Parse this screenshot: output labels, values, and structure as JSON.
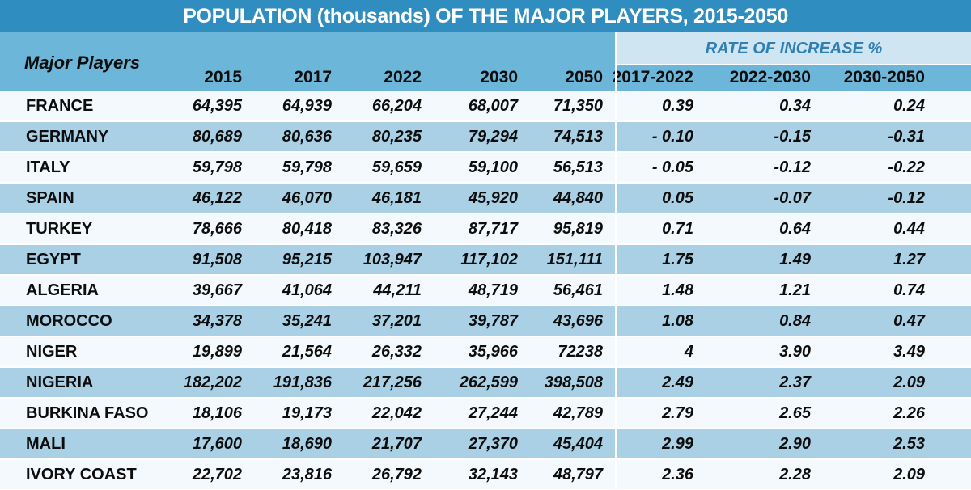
{
  "title": "POPULATION (thousands) OF THE MAJOR PLAYERS, 2015-2050",
  "rate_header": "RATE OF INCREASE %",
  "row_header": "Major Players",
  "colors": {
    "title_bg": "#2f8dbf",
    "header_bg": "#6bb6d9",
    "rate_header_bg": "#cfe5f1",
    "rate_header_text": "#2f7fb3",
    "row_light": "#f3f9fc",
    "row_dark": "#a9d0e5"
  },
  "chart_data": {
    "type": "table",
    "title": "POPULATION (thousands) OF THE MAJOR PLAYERS, 2015-2050",
    "columns": [
      "2015",
      "2017",
      "2022",
      "2030",
      "2050",
      "2017-2022",
      "2022-2030",
      "2030-2050"
    ],
    "rows": [
      {
        "name": "FRANCE",
        "values": [
          "64,395",
          "64,939",
          "66,204",
          "68,007",
          "71,350",
          "0.39",
          "0.34",
          "0.24"
        ]
      },
      {
        "name": "GERMANY",
        "values": [
          "80,689",
          "80,636",
          "80,235",
          "79,294",
          "74,513",
          "- 0.10",
          "-0.15",
          "-0.31"
        ]
      },
      {
        "name": "ITALY",
        "values": [
          "59,798",
          "59,798",
          "59,659",
          "59,100",
          "56,513",
          "- 0.05",
          "-0.12",
          "-0.22"
        ]
      },
      {
        "name": "SPAIN",
        "values": [
          "46,122",
          "46,070",
          "46,181",
          "45,920",
          "44,840",
          "0.05",
          "-0.07",
          "-0.12"
        ]
      },
      {
        "name": "TURKEY",
        "values": [
          "78,666",
          "80,418",
          "83,326",
          "87,717",
          "95,819",
          "0.71",
          "0.64",
          "0.44"
        ]
      },
      {
        "name": "EGYPT",
        "values": [
          "91,508",
          "95,215",
          "103,947",
          "117,102",
          "151,111",
          "1.75",
          "1.49",
          "1.27"
        ]
      },
      {
        "name": "ALGERIA",
        "values": [
          "39,667",
          "41,064",
          "44,211",
          "48,719",
          "56,461",
          "1.48",
          "1.21",
          "0.74"
        ]
      },
      {
        "name": "MOROCCO",
        "values": [
          "34,378",
          "35,241",
          "37,201",
          "39,787",
          "43,696",
          "1.08",
          "0.84",
          "0.47"
        ]
      },
      {
        "name": "NIGER",
        "values": [
          "19,899",
          "21,564",
          "26,332",
          "35,966",
          "72238",
          "4",
          "3.90",
          "3.49"
        ]
      },
      {
        "name": "NIGERIA",
        "values": [
          "182,202",
          "191,836",
          "217,256",
          "262,599",
          "398,508",
          "2.49",
          "2.37",
          "2.09"
        ]
      },
      {
        "name": "BURKINA FASO",
        "values": [
          "18,106",
          "19,173",
          "22,042",
          "27,244",
          "42,789",
          "2.79",
          "2.65",
          "2.26"
        ]
      },
      {
        "name": "MALI",
        "values": [
          "17,600",
          "18,690",
          "21,707",
          "27,370",
          "45,404",
          "2.99",
          "2.90",
          "2.53"
        ]
      },
      {
        "name": "IVORY COAST",
        "values": [
          "22,702",
          "23,816",
          "26,792",
          "32,143",
          "48,797",
          "2.36",
          "2.28",
          "2.09"
        ]
      }
    ]
  }
}
